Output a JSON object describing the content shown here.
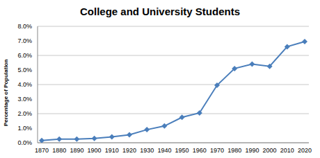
{
  "chart_data": {
    "type": "line",
    "title": "College and University Students",
    "y_label": "Percentage of Population",
    "categories": [
      "1870",
      "1880",
      "1890",
      "1900",
      "1910",
      "1920",
      "1930",
      "1940",
      "1950",
      "1960",
      "1970",
      "1980",
      "1990",
      "2000",
      "2010",
      "2020"
    ],
    "values": [
      0.15,
      0.25,
      0.25,
      0.3,
      0.4,
      0.55,
      0.9,
      1.15,
      1.75,
      2.05,
      3.95,
      5.1,
      5.4,
      5.25,
      6.6,
      6.95
    ],
    "color": "#4a7ebb",
    "marker": "diamond",
    "ylim": [
      0,
      8
    ],
    "yticks": [
      {
        "value": 0,
        "label": "0.0%"
      },
      {
        "value": 1,
        "label": "1.0%"
      },
      {
        "value": 2,
        "label": "2.0%"
      },
      {
        "value": 3,
        "label": "3.0%"
      },
      {
        "value": 4,
        "label": "4.0%"
      },
      {
        "value": 5,
        "label": "5.0%"
      },
      {
        "value": 6,
        "label": "6.0%"
      },
      {
        "value": 7,
        "label": "7.0%"
      },
      {
        "value": 8,
        "label": "8.0%"
      }
    ],
    "grid": true
  }
}
